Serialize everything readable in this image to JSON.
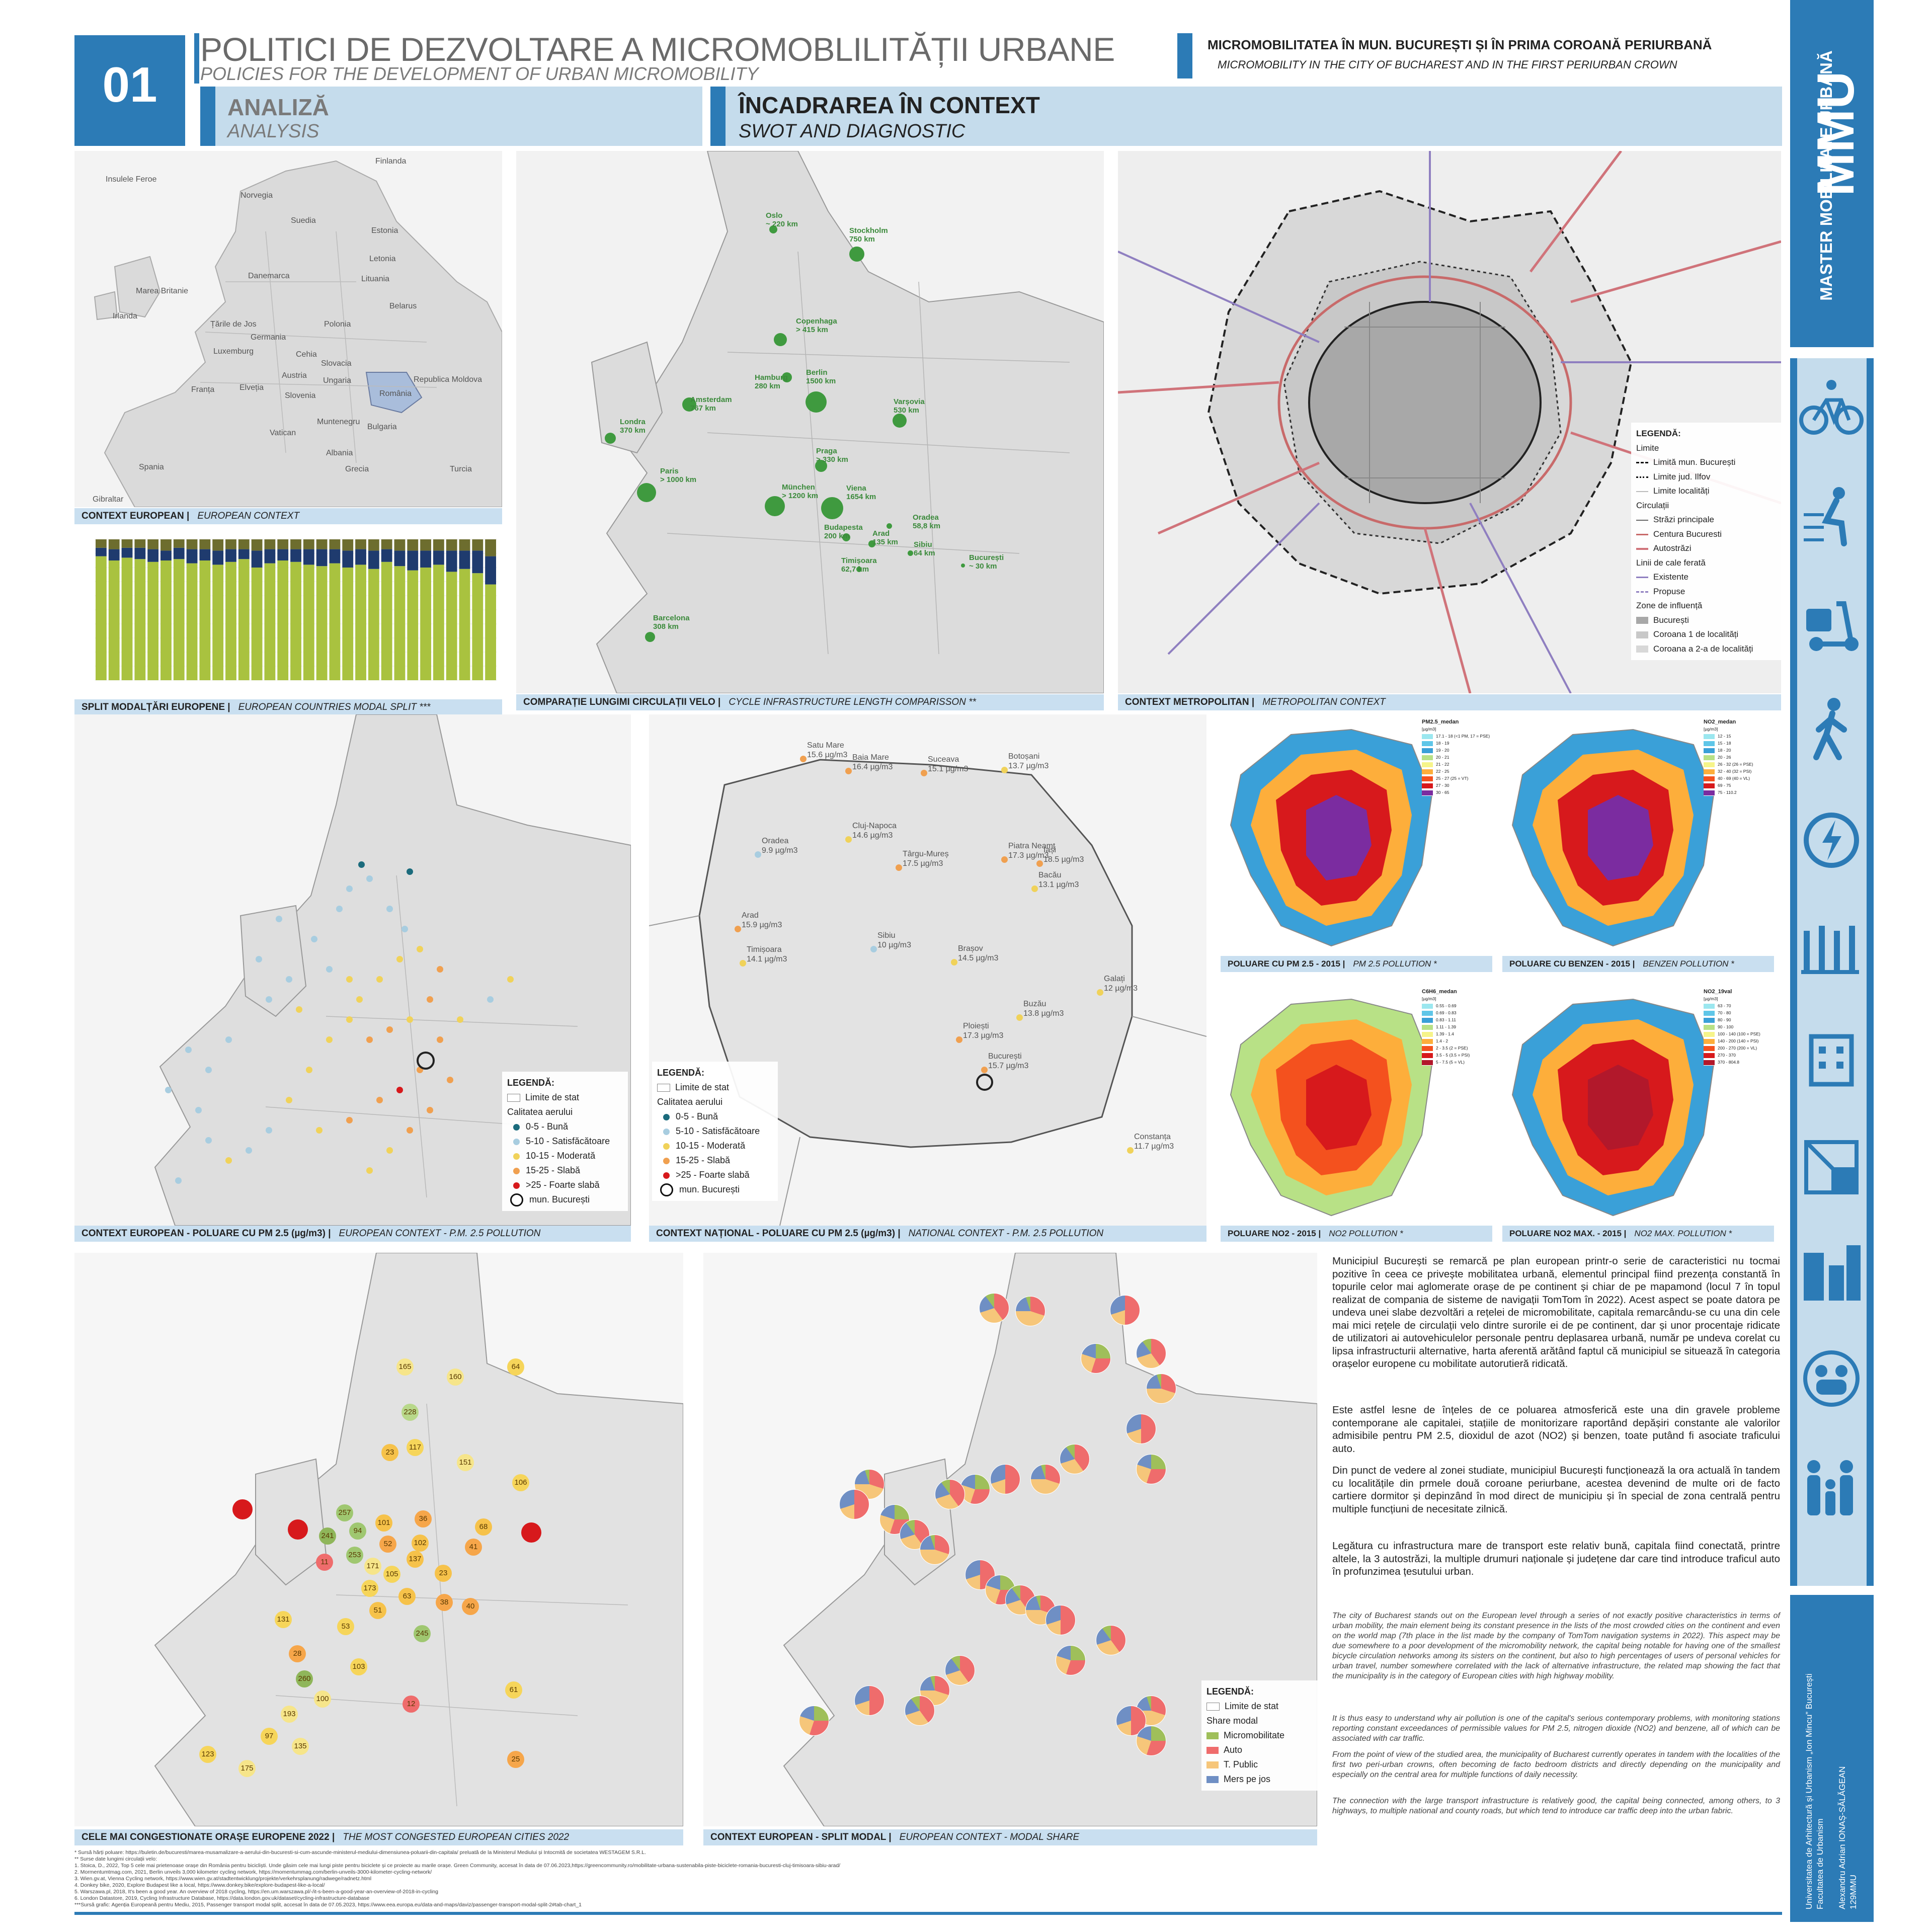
{
  "header": {
    "number": "01",
    "title_ro": "POLITICI DE DEZVOLTARE A MICROMOBLILITĂȚII URBANE",
    "title_en": "POLICIES FOR THE DEVELOPMENT OF URBAN MICROMOBILITY",
    "topic_ro": "MICROMOBILITATEA ÎN MUN. BUCUREȘTI ȘI ÎN PRIMA COROANĂ PERIURBANĂ",
    "topic_en": "MICROMOBILITY IN THE CITY OF BUCHAREST AND IN THE FIRST PERIURBAN CROWN",
    "section1_ro": "ANALIZĂ",
    "section1_en": "ANALYSIS",
    "section2_ro": "ÎNCADRAREA ÎN CONTEXT",
    "section2_en": "SWOT AND DIAGNOSTIC"
  },
  "sidebar": {
    "logo": "MMU",
    "logo_sub": "MASTER MOBILITATE URBANĂ",
    "credits": "Universitatea de Arhitectură și Urbanism „Ion Mincu” București\nFacultatea de Urbanism\n\nAlexandru Adrian IONAȘ-SĂLĂGEAN\n129MMU",
    "icons": [
      "bicycle-icon",
      "scooter-icon",
      "electric-scooter-icon",
      "pedestrian-icon",
      "charging-icon",
      "bike-rack-icon",
      "building-icon",
      "map-icon",
      "city-icon",
      "people-cycle-icon",
      "family-icon"
    ]
  },
  "panels": {
    "context_european": {
      "ro": "CONTEXT EUROPEAN |",
      "en": "EUROPEAN CONTEXT"
    },
    "modal_split": {
      "ro": "SPLIT MODALȚĂRI EUROPENE |",
      "en": "EUROPEAN COUNTRIES MODAL SPLIT ***"
    },
    "cycle_compare": {
      "ro": "COMPARAȚIE LUNGIMI CIRCULAȚII VELO |",
      "en": "CYCLE INFRASTRUCTURE LENGTH COMPARISSON **"
    },
    "metropolitan": {
      "ro": "CONTEXT METROPOLITAN |",
      "en": "METROPOLITAN CONTEXT"
    },
    "pm_europe": {
      "ro": "CONTEXT EUROPEAN - POLUARE CU PM 2.5 (µg/m3) |",
      "en": "EUROPEAN CONTEXT - P.M. 2.5 POLLUTION"
    },
    "pm_national": {
      "ro": "CONTEXT NAȚIONAL - POLUARE CU PM 2.5 (µg/m3) |",
      "en": "NATIONAL CONTEXT - P.M. 2.5 POLLUTION"
    },
    "pm25_2015": {
      "ro": "POLUARE CU PM 2.5 - 2015 |",
      "en": "PM 2.5 POLLUTION *"
    },
    "benzen_2015": {
      "ro": "POLUARE CU BENZEN - 2015 |",
      "en": "BENZEN POLLUTION *"
    },
    "no2_2015": {
      "ro": "POLUARE NO2 - 2015 |",
      "en": "NO2 POLLUTION *"
    },
    "no2max_2015": {
      "ro": "POLUARE NO2 MAX. - 2015 |",
      "en": "NO2 MAX. POLLUTION *"
    },
    "congested": {
      "ro": "CELE MAI CONGESTIONATE ORAȘE EUROPENE 2022 |",
      "en": "THE MOST CONGESTED EUROPEAN CITIES 2022"
    },
    "split_modal": {
      "ro": "CONTEXT EUROPEAN - SPLIT MODAL |",
      "en": "EUROPEAN CONTEXT - MODAL SHARE"
    }
  },
  "europe_labels": [
    "Finlanda",
    "Insulele Feroe",
    "Norvegia",
    "Suedia",
    "Estonia",
    "Letonia",
    "Danemarca",
    "Lituania",
    "Marea Britanie",
    "Belarus",
    "Irlanda",
    "Țările de Jos",
    "Polonia",
    "Germania",
    "Luxemburg",
    "Cehia",
    "Slovacia",
    "Austria",
    "Franța",
    "Elveția",
    "Ungaria",
    "Slovenia",
    "România",
    "Republica Moldova",
    "Bulgaria",
    "Muntenegru",
    "Vatican",
    "Albania",
    "Spania",
    "Grecia",
    "Turcia",
    "Gibraltar"
  ],
  "cycle_cities": [
    "Oslo\n~ 220 km",
    "Stockholm\n750 km",
    "Copenhaga\n> 415 km",
    "Hamburg\n280 km",
    "Berlin\n1500 km",
    "Varșovia\n530 km",
    "Amsterdam\n767 km",
    "Londra\n370 km",
    "Paris\n> 1000 km",
    "Praga\n> 330 km",
    "München\n> 1200 km",
    "Viena\n1654 km",
    "Budapesta\n200 km",
    "Arad\n135 km",
    "Oradea\n58,8 km",
    "Sibiu\n64 km",
    "Timișoara\n62,7 km",
    "București\n~ 30 km",
    "Barcelona\n308 km"
  ],
  "metro_legend": {
    "title": "LEGENDĂ:",
    "limits": "Limite",
    "limit_buc": "Limită mun. București",
    "limit_jud": "Limite jud. Ilfov",
    "limit_loc": "Limite localități",
    "circ": "Circulații",
    "streets": "Străzi principale",
    "ring": "Centura Bucuresti",
    "motorway": "Autostrăzi",
    "rail": "Linii de cale ferată",
    "rail_existing": "Existente",
    "rail_proposed": "Propuse",
    "zones": "Zone de influență",
    "zone_buc": "București",
    "zone_c1": "Coroana 1 de localități",
    "zone_c2": "Coroana a 2-a de localități"
  },
  "pm_legend": {
    "title": "LEGENDĂ:",
    "state": "Limite de stat",
    "quality": "Calitatea aerului",
    "good": "0-5 - Bună",
    "satisf": "5-10 - Satisfăcătoare",
    "moderate": "10-15 - Moderată",
    "weak": "15-25 - Slabă",
    "very_weak": ">25 - Foarte slabă",
    "buc": "mun. București"
  },
  "ro_cities": [
    "Satu Mare\n15.6 µg/m3",
    "Baia Mare\n16.4 µg/m3",
    "Suceava\n15.1 µg/m3",
    "Botoșani\n13.7 µg/m3",
    "Oradea\n9.9 µg/m3",
    "Iași\n18.5 µg/m3",
    "Cluj-Napoca\n14.6 µg/m3",
    "Târgu-Mureș\n17.5 µg/m3",
    "Piatra Neamț\n17.3 µg/m3",
    "Bacău\n13.1 µg/m3",
    "Arad\n15.9 µg/m3",
    "Timișoara\n14.1 µg/m3",
    "Sibiu\n10 µg/m3",
    "Brașov\n14.5 µg/m3",
    "Galați\n12 µg/m3",
    "Buzău\n13.8 µg/m3",
    "Ploiești\n17.3 µg/m3",
    "București\n15.7 µg/m3",
    "Constanța\n11.7 µg/m3"
  ],
  "buc_maps": {
    "pm": {
      "title": "PM2.5_medan",
      "unit": "[µg/m3]",
      "scale": [
        "17.1 - 18 (<1 PM, 17 = PSE)",
        "18 - 19",
        "19 - 20",
        "20 - 21",
        "21 - 22",
        "22 - 25",
        "25 - 27 (25 = VT)",
        "27 - 30",
        "30 - 65"
      ]
    },
    "benz": {
      "title": "NO2_medan",
      "unit": "[µg/m3]",
      "scale": [
        "12 - 15",
        "15 - 18",
        "18 - 20",
        "20 - 26",
        "26 - 32 (26 = PSE)",
        "32 - 40 (32 = PSI)",
        "40 - 69 (40 = VL)",
        "69 - 75",
        "75 - 110.2"
      ]
    },
    "no2": {
      "title": "C6H6_medan",
      "unit": "[µg/m3]",
      "scale": [
        "0.55 - 0.69",
        "0.69 - 0.83",
        "0.83 - 1.11",
        "1.11 - 1.39",
        "1.39 - 1.4",
        "1.4 - 2",
        "2 - 3.5 (2 = PSE)",
        "3.5 - 5 (3.5 = PSI)",
        "5 - 7.5 (5 = VL)"
      ]
    },
    "no2max": {
      "title": "NO2_19val",
      "unit": "[µg/m3]",
      "scale": [
        "63 - 70",
        "70 - 80",
        "80 - 90",
        "90 - 100",
        "100 - 140 (100 = PSE)",
        "140 - 200 (140 = PSI)",
        "200 - 270 (200 = VL)",
        "270 - 370",
        "370 - 804.8"
      ]
    }
  },
  "congestion_values": [
    "165",
    "160",
    "64",
    "228",
    "23",
    "117",
    "151",
    "106",
    "257",
    "101",
    "36",
    "68",
    "241",
    "94",
    "52",
    "102",
    "41",
    "11",
    "253",
    "171",
    "105",
    "137",
    "23",
    "173",
    "63",
    "51",
    "38",
    "131",
    "53",
    "40",
    "245",
    "103",
    "28",
    "260",
    "100",
    "12",
    "61",
    "193",
    "97",
    "135",
    "123",
    "175",
    "25"
  ],
  "share_legend": {
    "title": "LEGENDĂ:",
    "state": "Limite de stat",
    "share": "Share modal",
    "micro": "Micromobilitate",
    "auto": "Auto",
    "pt": "T. Public",
    "walk": "Mers pe jos"
  },
  "text_ro": [
    "Municipiul București se remarcă pe plan european printr-o serie de caracteristici nu tocmai pozitive în ceea ce privește mobilitatea urbană, elementul principal fiind prezența constantă în topurile celor mai aglomerate orașe de pe continent și chiar de pe mapamond (locul 7 în topul realizat de compania de sisteme de navigații TomTom în 2022). Acest aspect se poate datora pe undeva unei slabe dezvoltări a rețelei de micromobilitate, capitala remarcându-se cu una din cele mai mici rețele de circulații velo dintre surorile ei de pe continent, dar și unor procentaje ridicate de utilizatori ai autovehiculelor personale pentru deplasarea urbană, număr pe undeva corelat cu lipsa infrastructurii alternative, harta aferentă arătând faptul că municipiul se situează în categoria orașelor europene cu mobilitate autorutieră ridicată.",
    "Este astfel lesne de înțeles de ce poluarea atmosferică este una din gravele probleme contemporane ale capitalei, stațiile de monitorizare raportând depășiri constante ale valorilor admisibile pentru PM 2.5, dioxidul de azot (NO2) și benzen, toate putând fi asociate traficului auto.",
    "Din punct de vedere al zonei studiate, municipiul București funcționează la ora actuală în tandem cu localitățile din prmele două coroane periurbane, acestea devenind de multe ori de facto cartiere dormitor și depinzând în mod direct de municipiu și în special de zona centrală pentru multiple funcțiuni de necesitate zilnică.",
    "Legătura cu infrastructura mare de transport este relativ bună, capitala fiind conectată, printre altele, la 3 autostrăzi, la multiple drumuri naționale și județene dar care tind introduce traficul auto în profunzimea țesutului urban."
  ],
  "text_en": [
    "The city of Bucharest stands out on the European level through a series of not exactly positive characteristics in terms of urban mobility, the main element being its constant presence in the lists of the most crowded cities on the continent and even on the world map (7th place in the list made by the company of TomTom navigation systems in 2022). This aspect may be due somewhere to a poor development of the micromobility network, the capital being notable for having one of the smallest bicycle circulation networks among its sisters on the continent, but also to high percentages of users of personal vehicles for urban travel, number somewhere correlated with the lack of alternative infrastructure, the related map showing the fact that the municipality is in the category of European cities with high highway mobility.",
    "It is thus easy to understand why air pollution is one of the capital's serious contemporary problems, with monitoring stations reporting constant exceedances of permissible values for PM 2.5, nitrogen dioxide (NO2) and benzene, all of which can be associated with car traffic.",
    "From the point of view of the studied area, the municipality of Bucharest currently operates in tandem with the localities of the first two peri-urban crowns, often becoming de facto bedroom districts and directly depending on the municipality and especially on the central area for multiple functions of daily necessity.",
    "The connection with the large transport infrastructure is relatively good, the capital being connected, among others, to 3 highways, to multiple national and county roads, but which tend to introduce car traffic deep into the urban fabric."
  ],
  "sources": [
    "* Sursă hărți poluare: https://buletin.de/bucuresti/marea-musamalizare-a-aerului-din-bucuresti-si-cum-ascunde-ministerul-mediului-dimensiunea-poluarii-din-capitala/ preluată de la Ministerul Mediului și Intocmită de societatea WESTAGEM S.R.L.",
    "** Surse date lungimi circulații velo:",
    "1. Stoica, D., 2022, Top 5 cele mai prietenoase orașe din România pentru bicicliști. Unde găsim cele mai lungi piste pentru biciclete și ce proiecte au marile orașe. Green Community, accesat în data de 07.06.2023,https://greencommunity.ro/mobilitate-urbana-sustenabila-piste-biciclete-romania-bucuresti-cluj-timisoara-sibiu-arad/",
    "2. Mormentumtmag.com, 2021, Berlin unveils 3,000 kilometer cycling network, https://momentummag.com/berlin-unveils-3000-kilometer-cycling-network/",
    "3. Wien.gv.at, Vienna Cycling network, https://www.wien.gv.at/stadtentwicklung/projekte/verkehrsplanung/radwege/radnetz.html",
    "4. Donkey bike, 2020, Explore Budapest like a local, https://www.donkey.bike/explore-budapest-like-a-local/",
    "5. Warszawa.pl, 2018, It's been a good year. An overview of 2018 cycling, https://en.um.warszawa.pl/-/it-s-been-a-good-year-an-overview-of-2018-in-cycling",
    "6. London Datastore, 2019, Cycling Infrastructure Database, https://data.london.gov.uk/dataset/cycling-infrastructure-database",
    "***Sursă grafic: Agenția Europeană pentru Mediu, 2015, Passenger transport modal split, accesat în data de 07.05.2023, https://www.eea.europa.eu/data-and-maps/daviz/passenger-transport-modal-split-2#tab-chart_1"
  ],
  "chart_data": {
    "type": "bar",
    "title": "",
    "series": [
      {
        "name": "",
        "color": "#a9c23f",
        "values": [
          88,
          85,
          87,
          86,
          84,
          85,
          86,
          83,
          85,
          82,
          84,
          86,
          80,
          83,
          85,
          84,
          82,
          81,
          83,
          80,
          82,
          79,
          84,
          81,
          78,
          80,
          82,
          77,
          79,
          76,
          68
        ]
      },
      {
        "name": "",
        "color": "#1f3b6e",
        "values": [
          6,
          8,
          7,
          8,
          9,
          7,
          8,
          10,
          8,
          10,
          9,
          7,
          12,
          10,
          8,
          9,
          11,
          12,
          10,
          12,
          11,
          13,
          9,
          11,
          14,
          12,
          10,
          15,
          13,
          16,
          20
        ]
      },
      {
        "name": "",
        "color": "#6d6d2e",
        "values": [
          6,
          7,
          6,
          6,
          7,
          8,
          6,
          7,
          7,
          8,
          7,
          7,
          8,
          7,
          7,
          7,
          7,
          7,
          7,
          8,
          7,
          8,
          7,
          8,
          8,
          8,
          8,
          8,
          8,
          8,
          12
        ]
      }
    ],
    "ylim": [
      0,
      100
    ]
  }
}
